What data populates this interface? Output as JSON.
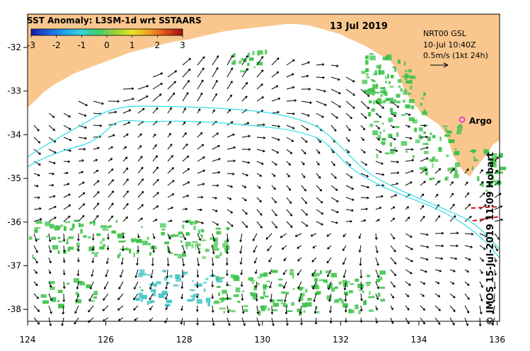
{
  "title": "SST Anomaly: L3SM-1d wrt SSTAARS",
  "date": "13 Jul 2019",
  "colorbar": {
    "ticks": [
      "-3",
      "-2",
      "-1",
      "0",
      "1",
      "2",
      "3"
    ],
    "colors": [
      "#1a1aa6",
      "#1f5fe0",
      "#1fa3f0",
      "#33d6d6",
      "#3ecf6a",
      "#9bd23a",
      "#e6e622",
      "#f0a020",
      "#e04a18",
      "#9a1010"
    ]
  },
  "info": {
    "product": "NRT00 GSL",
    "time": "10-Jul 10:40Z",
    "scale": "0.5m/s (1kt 24h)"
  },
  "argo_label": "Argo",
  "credit": "© IMOS 15-Jul-2019 11:09 Hobart",
  "axes": {
    "x_ticks": [
      "124",
      "126",
      "128",
      "130",
      "132",
      "134",
      "136"
    ],
    "y_ticks": [
      "-32",
      "-33",
      "-34",
      "-35",
      "-36",
      "-37",
      "-38"
    ],
    "xlim": [
      124,
      136.5
    ],
    "ylim": [
      -38.1,
      -31.35
    ]
  },
  "colors": {
    "land": "#f9c78e",
    "contour": "#33dde6",
    "anomaly_green": "#3ec24a",
    "argo": "#e01ee0",
    "alt_track": "#e01010"
  }
}
